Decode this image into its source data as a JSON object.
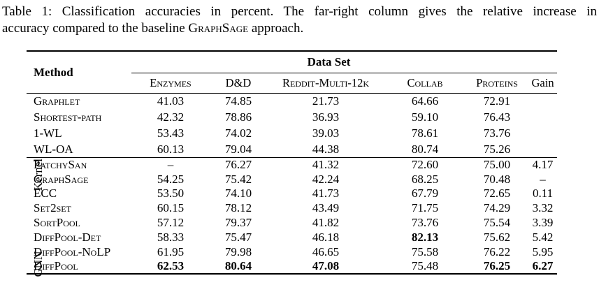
{
  "caption": {
    "line1": "Table 1: Classification accuracies in percent. The far-right column gives the relative increase in",
    "line2_before": "accuracy compared to the baseline ",
    "line2_sc": "GraphSage",
    "line2_after": " approach."
  },
  "table": {
    "header": {
      "method_label": "Method",
      "group_label": "Data Set",
      "columns": [
        {
          "label": "Enzymes"
        },
        {
          "label": "D&D"
        },
        {
          "label": "Reddit-Multi-12k"
        },
        {
          "label": "Collab"
        },
        {
          "label": "Proteins"
        },
        {
          "label": "Gain"
        }
      ]
    },
    "sections": [
      {
        "group_label": "Kernel",
        "rows": [
          {
            "method": "Graphlet",
            "values": [
              "41.03",
              "74.85",
              "21.73",
              "64.66",
              "72.91",
              ""
            ],
            "bold": []
          },
          {
            "method": "Shortest-path",
            "values": [
              "42.32",
              "78.86",
              "36.93",
              "59.10",
              "76.43",
              ""
            ],
            "bold": []
          },
          {
            "method": "1-WL",
            "values": [
              "53.43",
              "74.02",
              "39.03",
              "78.61",
              "73.76",
              ""
            ],
            "bold": []
          },
          {
            "method": "WL-OA",
            "values": [
              "60.13",
              "79.04",
              "44.38",
              "80.74",
              "75.26",
              ""
            ],
            "bold": []
          }
        ]
      },
      {
        "group_label": "GNN",
        "rows": [
          {
            "method": "PatchySan",
            "values": [
              "–",
              "76.27",
              "41.32",
              "72.60",
              "75.00",
              "4.17"
            ],
            "bold": []
          },
          {
            "method": "GraphSage",
            "values": [
              "54.25",
              "75.42",
              "42.24",
              "68.25",
              "70.48",
              "–"
            ],
            "bold": []
          },
          {
            "method": "ECC",
            "values": [
              "53.50",
              "74.10",
              "41.73",
              "67.79",
              "72.65",
              "0.11"
            ],
            "bold": []
          },
          {
            "method": "Set2set",
            "values": [
              "60.15",
              "78.12",
              "43.49",
              "71.75",
              "74.29",
              "3.32"
            ],
            "bold": []
          },
          {
            "method": "SortPool",
            "values": [
              "57.12",
              "79.37",
              "41.82",
              "73.76",
              "75.54",
              "3.39"
            ],
            "bold": []
          },
          {
            "method": "DiffPool-Det",
            "values": [
              "58.33",
              "75.47",
              "46.18",
              "82.13",
              "75.62",
              "5.42"
            ],
            "bold": [
              3
            ]
          },
          {
            "method": "DiffPool-NoLP",
            "values": [
              "61.95",
              "79.98",
              "46.65",
              "75.58",
              "76.22",
              "5.95"
            ],
            "bold": []
          },
          {
            "method": "DiffPool",
            "values": [
              "62.53",
              "80.64",
              "47.08",
              "75.48",
              "76.25",
              "6.27"
            ],
            "bold": [
              0,
              1,
              2,
              4,
              5
            ]
          }
        ]
      }
    ]
  }
}
